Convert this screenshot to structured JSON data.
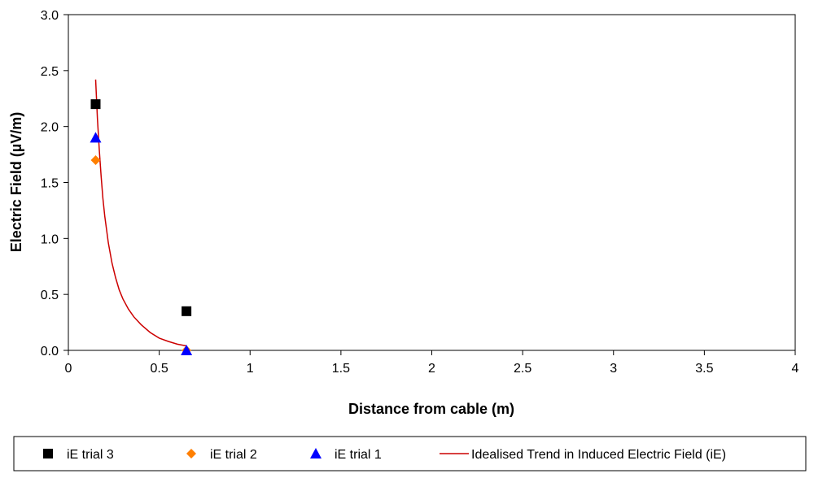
{
  "chart_data": {
    "type": "scatter",
    "title": "",
    "xlabel": "Distance from cable (m)",
    "ylabel": "Electric Field (µV/m)",
    "xlim": [
      0,
      4
    ],
    "ylim": [
      0,
      3
    ],
    "x_ticks": [
      0,
      0.5,
      1,
      1.5,
      2,
      2.5,
      3,
      3.5,
      4
    ],
    "x_tick_labels": [
      "0",
      "0.5",
      "1",
      "1.5",
      "2",
      "2.5",
      "3",
      "3.5",
      "4"
    ],
    "y_ticks": [
      0,
      0.5,
      1,
      1.5,
      2,
      2.5,
      3
    ],
    "y_tick_labels": [
      "0.0",
      "0.5",
      "1.0",
      "1.5",
      "2.0",
      "2.5",
      "3.0"
    ],
    "grid": false,
    "legend_position": "bottom",
    "series": [
      {
        "name": "iE trial 3",
        "marker": "square",
        "color": "#000000",
        "points": [
          [
            0.15,
            2.2
          ],
          [
            0.65,
            0.35
          ]
        ]
      },
      {
        "name": "iE trial 2",
        "marker": "diamond",
        "color": "#ff7f00",
        "points": [
          [
            0.15,
            1.7
          ],
          [
            0.65,
            0.0
          ]
        ]
      },
      {
        "name": "iE trial 1",
        "marker": "triangle",
        "color": "#0000ff",
        "points": [
          [
            0.15,
            1.9
          ],
          [
            0.65,
            0.0
          ]
        ]
      },
      {
        "name": "Idealised Trend in Induced Electric Field (iE)",
        "marker": "line",
        "color": "#cc0000",
        "points": [
          [
            0.15,
            2.42
          ],
          [
            0.16,
            2.07
          ],
          [
            0.17,
            1.79
          ],
          [
            0.18,
            1.56
          ],
          [
            0.19,
            1.36
          ],
          [
            0.2,
            1.2
          ],
          [
            0.22,
            0.96
          ],
          [
            0.24,
            0.78
          ],
          [
            0.26,
            0.65
          ],
          [
            0.28,
            0.54
          ],
          [
            0.3,
            0.46
          ],
          [
            0.33,
            0.37
          ],
          [
            0.36,
            0.3
          ],
          [
            0.4,
            0.23
          ],
          [
            0.45,
            0.16
          ],
          [
            0.5,
            0.11
          ],
          [
            0.55,
            0.08
          ],
          [
            0.6,
            0.055
          ],
          [
            0.65,
            0.04
          ]
        ]
      }
    ]
  }
}
